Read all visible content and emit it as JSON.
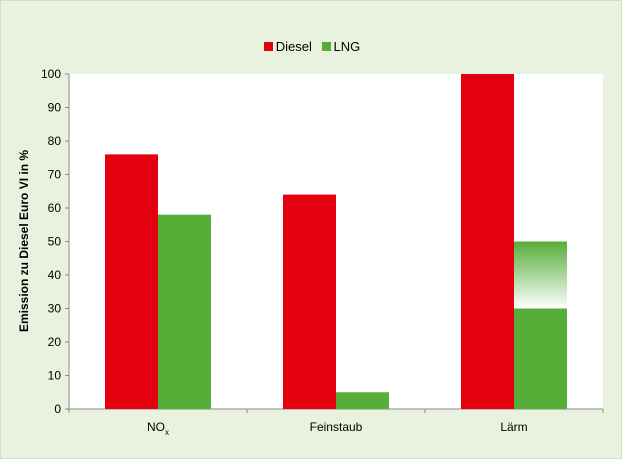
{
  "chart_data": {
    "type": "bar",
    "categories": [
      "NO",
      "Feinstaub",
      "Lärm"
    ],
    "category_subscripts": [
      "x",
      "",
      ""
    ],
    "series": [
      {
        "name": "Diesel",
        "color": "#e3000f",
        "values": [
          76,
          64,
          100
        ]
      },
      {
        "name": "LNG",
        "color": "#56ad37",
        "values": [
          58,
          5,
          50
        ],
        "faded_above": [
          null,
          null,
          30
        ]
      }
    ],
    "ylabel": "Emission zu Diesel Euro VI in %",
    "ylim": [
      0,
      100
    ],
    "yticks": [
      0,
      10,
      20,
      30,
      40,
      50,
      60,
      70,
      80,
      90,
      100
    ],
    "legend_position": "top-center",
    "grid": false,
    "background": "#e9f1df",
    "plot_background": "#ffffff"
  }
}
